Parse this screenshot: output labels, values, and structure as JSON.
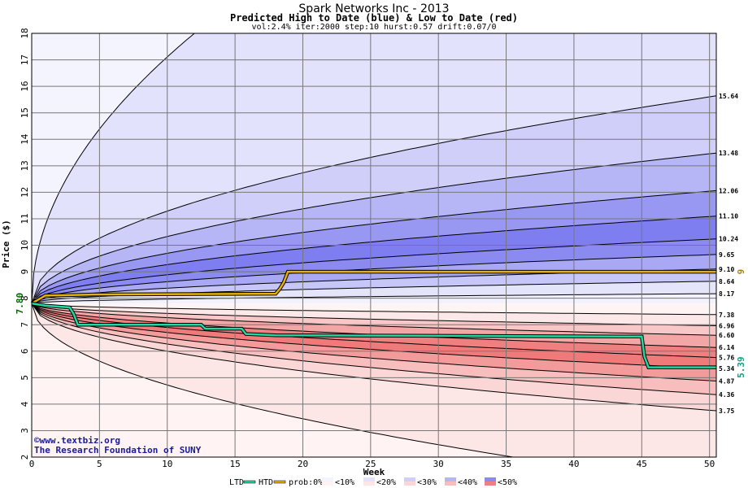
{
  "chart_data": {
    "type": "area",
    "title": "Spark Networks Inc - 2013",
    "subtitle": "Predicted High to Date (blue) &  Low to Date (red)",
    "params": "vol:2.4% iter:2000 step:10 hurst:0.57 drift:0.07/0",
    "xlabel": "Week",
    "ylabel": "Price ($)",
    "xlim": [
      0,
      50.5
    ],
    "ylim": [
      2,
      18
    ],
    "xticks": [
      0,
      5,
      10,
      15,
      20,
      25,
      30,
      35,
      40,
      45,
      50
    ],
    "yticks": [
      2,
      3,
      4,
      5,
      6,
      7,
      8,
      9,
      10,
      11,
      12,
      13,
      14,
      15,
      16,
      17,
      18
    ],
    "grid": true,
    "start_price": 7.8,
    "start_label": "7.80",
    "upper_bands": [
      {
        "label": "",
        "end": 18.0,
        "end_week": 12,
        "fill": "#f4f4ff"
      },
      {
        "label": "15.64",
        "end": 15.64,
        "fill": "#e2e2fc"
      },
      {
        "label": "13.48",
        "end": 13.48,
        "fill": "#cfcff9"
      },
      {
        "label": "12.06",
        "end": 12.06,
        "fill": "#b6b6f6"
      },
      {
        "label": "11.10",
        "end": 11.1,
        "fill": "#9898f2"
      },
      {
        "label": "10.24",
        "end": 10.24,
        "fill": "#7e7ef0"
      },
      {
        "label": "9.65",
        "end": 9.65,
        "fill": "#8a8af1"
      },
      {
        "label": "9.10",
        "end": 9.1,
        "fill": "#a8a8f4"
      },
      {
        "label": "8.64",
        "end": 8.64,
        "fill": "#c6c6f8"
      },
      {
        "label": "8.17",
        "end": 8.17,
        "fill": "#e4e4fb"
      }
    ],
    "lower_bands": [
      {
        "label": "7.38",
        "end": 7.38,
        "fill": "#fce8e8"
      },
      {
        "label": "6.96",
        "end": 6.96,
        "fill": "#f8c8c8"
      },
      {
        "label": "6.60",
        "end": 6.6,
        "fill": "#f3a6a6"
      },
      {
        "label": "6.14",
        "end": 6.14,
        "fill": "#f08080"
      },
      {
        "label": "5.76",
        "end": 5.76,
        "fill": "#f07a7a"
      },
      {
        "label": "5.34",
        "end": 5.34,
        "fill": "#f39a9a"
      },
      {
        "label": "4.87",
        "end": 4.87,
        "fill": "#f8bdbd"
      },
      {
        "label": "4.36",
        "end": 4.36,
        "fill": "#fbd6d6"
      },
      {
        "label": "3.75",
        "end": 3.75,
        "fill": "#fde6e6"
      },
      {
        "label": "",
        "end": 2.0,
        "end_week": 35.5,
        "fill": "#fff3f3"
      }
    ],
    "htd_series": {
      "name": "HTD",
      "color": "#e8b000",
      "label": "9",
      "x": [
        0,
        0.5,
        1,
        3,
        4.5,
        18,
        18.3,
        18.6,
        18.9,
        50.5
      ],
      "y": [
        7.8,
        7.95,
        8.1,
        8.12,
        8.14,
        8.17,
        8.35,
        8.6,
        9.0,
        9.0
      ]
    },
    "ltd_series": {
      "name": "LTD",
      "color": "#20d8a0",
      "label": "5.39",
      "x": [
        0,
        1,
        2.8,
        3.1,
        3.4,
        12.5,
        12.8,
        15.5,
        15.8,
        18,
        45,
        45.2,
        45.5,
        50.5
      ],
      "y": [
        7.8,
        7.72,
        7.65,
        7.4,
        7.0,
        7.0,
        6.85,
        6.85,
        6.65,
        6.6,
        6.55,
        5.8,
        5.39,
        5.39
      ]
    },
    "legend": {
      "items": [
        "LTD",
        "HTD",
        "prob:0%",
        "<10%",
        "<20%",
        "<30%",
        "<40%",
        "<50%"
      ],
      "placement": "bottom"
    },
    "credit": [
      "©www.textbiz.org",
      "The Research Foundation of SUNY"
    ]
  },
  "colors": {
    "grid": "#777777",
    "band_line": "#000000",
    "axis_text": "#000000",
    "start_label": "#006400",
    "htd_label": "#b08000",
    "ltd_label": "#10a080",
    "credit": "#1a1a9a"
  }
}
